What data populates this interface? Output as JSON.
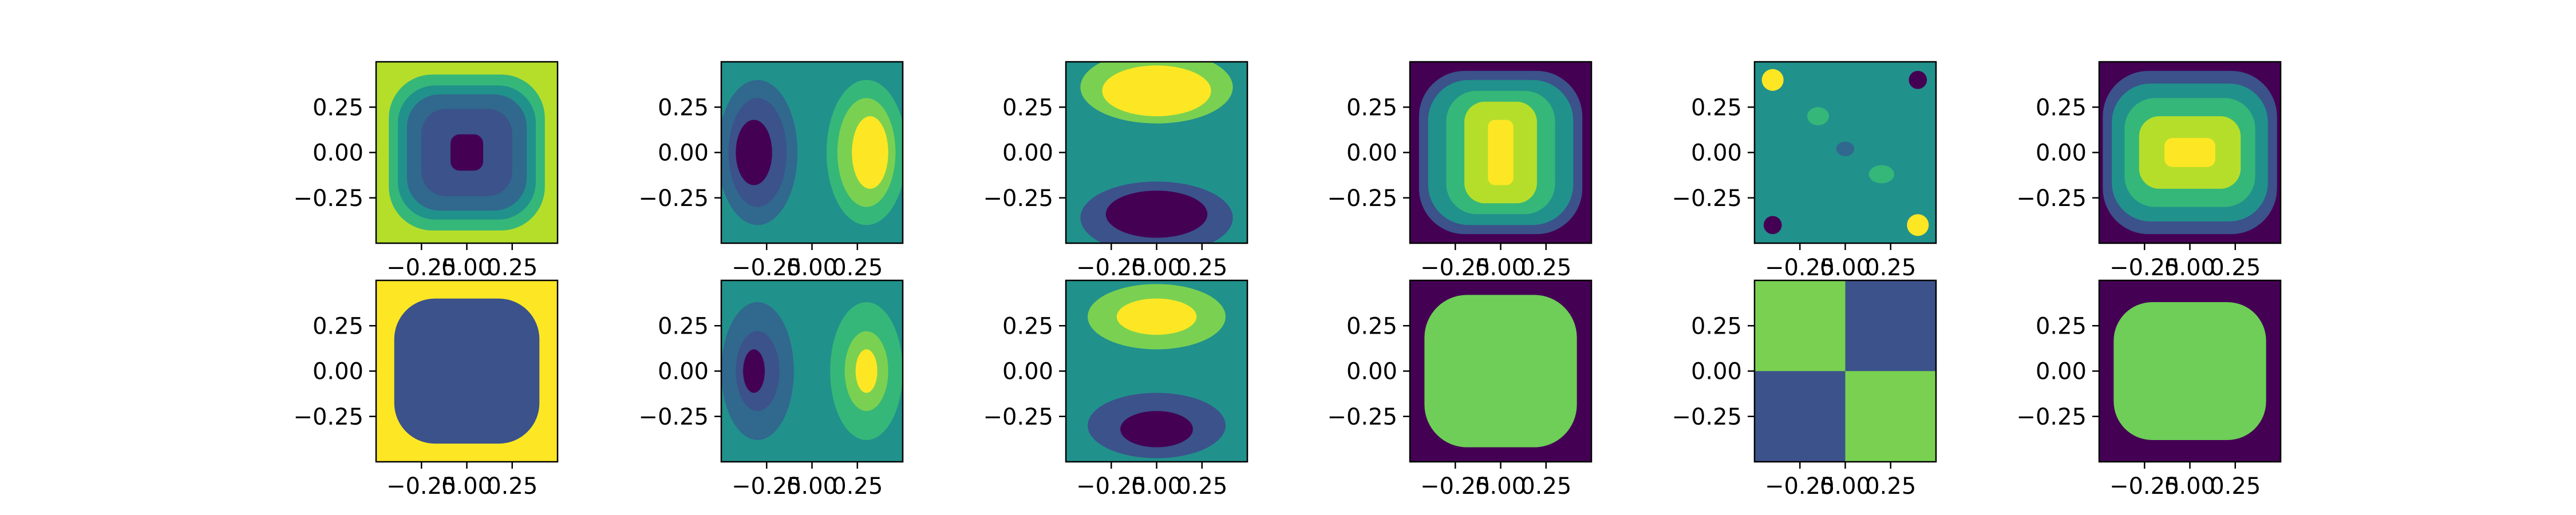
{
  "figure": {
    "rows": 2,
    "cols": 6,
    "colors": {
      "dark": "#440154",
      "indigo": "#3b528b",
      "blue": "#31688e",
      "teal": "#21918c",
      "green": "#35b779",
      "lime": "#7ad151",
      "yellow": "#fde725",
      "axis": "#000000",
      "background": "#ffffff"
    }
  },
  "chart_data": [
    {
      "type": "heatmap",
      "title": "",
      "xlabel": "",
      "ylabel": "",
      "colormap": "viridis",
      "xlim": [
        -0.5,
        0.5
      ],
      "ylim": [
        -0.5,
        0.5
      ],
      "x_ticks": [
        "−0.25",
        "0.00",
        "0.25"
      ],
      "y_ticks": [
        "0.25",
        "0.00",
        "−0.25"
      ],
      "pattern": "square contour rings: high (yellow) at edges, low (dark) at center",
      "levels": [
        {
          "half_w": 0.5,
          "half_h": 0.5,
          "color": "#b5de2b"
        },
        {
          "half_w": 0.43,
          "half_h": 0.43,
          "color": "#35b779"
        },
        {
          "half_w": 0.38,
          "half_h": 0.37,
          "color": "#21918c"
        },
        {
          "half_w": 0.33,
          "half_h": 0.32,
          "color": "#31688e"
        },
        {
          "half_w": 0.25,
          "half_h": 0.24,
          "color": "#3b528b"
        },
        {
          "half_w": 0.09,
          "half_h": 0.1,
          "color": "#440154"
        }
      ]
    },
    {
      "type": "heatmap",
      "title": "",
      "xlabel": "",
      "ylabel": "",
      "colormap": "viridis",
      "xlim": [
        -0.5,
        0.5
      ],
      "ylim": [
        -0.5,
        0.5
      ],
      "x_ticks": [
        "−0.25",
        "0.00",
        "0.25"
      ],
      "y_ticks": [
        "0.25",
        "0.00",
        "−0.25"
      ],
      "pattern": "low lobe on left, high lobe on right",
      "background": "#21918c",
      "blobs": [
        {
          "cx": -0.3,
          "cy": 0.0,
          "rx": 0.22,
          "ry": 0.4,
          "color": "#31688e"
        },
        {
          "cx": -0.3,
          "cy": 0.0,
          "rx": 0.16,
          "ry": 0.3,
          "color": "#3b528b"
        },
        {
          "cx": -0.32,
          "cy": 0.0,
          "rx": 0.1,
          "ry": 0.18,
          "color": "#440154"
        },
        {
          "cx": 0.3,
          "cy": 0.0,
          "rx": 0.22,
          "ry": 0.4,
          "color": "#35b779"
        },
        {
          "cx": 0.3,
          "cy": 0.0,
          "rx": 0.16,
          "ry": 0.3,
          "color": "#7ad151"
        },
        {
          "cx": 0.32,
          "cy": 0.0,
          "rx": 0.1,
          "ry": 0.2,
          "color": "#fde725"
        }
      ]
    },
    {
      "type": "heatmap",
      "title": "",
      "xlabel": "",
      "ylabel": "",
      "colormap": "viridis",
      "xlim": [
        -0.5,
        0.5
      ],
      "ylim": [
        -0.5,
        0.5
      ],
      "x_ticks": [
        "−0.25",
        "0.00",
        "0.25"
      ],
      "y_ticks": [
        "0.25",
        "0.00",
        "−0.25"
      ],
      "pattern": "high lobe at top, low lobe at bottom",
      "background": "#21918c",
      "blobs": [
        {
          "cx": 0.0,
          "cy": 0.36,
          "rx": 0.42,
          "ry": 0.2,
          "color": "#7ad151"
        },
        {
          "cx": 0.0,
          "cy": 0.34,
          "rx": 0.3,
          "ry": 0.14,
          "color": "#fde725"
        },
        {
          "cx": 0.0,
          "cy": -0.36,
          "rx": 0.42,
          "ry": 0.2,
          "color": "#3b528b"
        },
        {
          "cx": 0.0,
          "cy": -0.34,
          "rx": 0.28,
          "ry": 0.13,
          "color": "#440154"
        }
      ]
    },
    {
      "type": "heatmap",
      "title": "",
      "xlabel": "",
      "ylabel": "",
      "colormap": "viridis",
      "xlim": [
        -0.5,
        0.5
      ],
      "ylim": [
        -0.5,
        0.5
      ],
      "x_ticks": [
        "−0.25",
        "0.00",
        "0.25"
      ],
      "y_ticks": [
        "0.25",
        "0.00",
        "−0.25"
      ],
      "pattern": "square contour rings: low (dark) at edges, high (yellow) at center",
      "levels": [
        {
          "half_w": 0.5,
          "half_h": 0.5,
          "color": "#440154"
        },
        {
          "half_w": 0.45,
          "half_h": 0.45,
          "color": "#3b528b"
        },
        {
          "half_w": 0.4,
          "half_h": 0.4,
          "color": "#21918c"
        },
        {
          "half_w": 0.3,
          "half_h": 0.34,
          "color": "#35b779"
        },
        {
          "half_w": 0.2,
          "half_h": 0.28,
          "color": "#b5de2b"
        },
        {
          "half_w": 0.07,
          "half_h": 0.18,
          "color": "#fde725"
        }
      ]
    },
    {
      "type": "heatmap",
      "title": "",
      "xlabel": "",
      "ylabel": "",
      "colormap": "viridis",
      "xlim": [
        -0.5,
        0.5
      ],
      "ylim": [
        -0.5,
        0.5
      ],
      "x_ticks": [
        "−0.25",
        "0.00",
        "0.25"
      ],
      "y_ticks": [
        "0.25",
        "0.00",
        "−0.25"
      ],
      "pattern": "mostly flat mid value with small extrema at corners",
      "background": "#21918c",
      "blobs": [
        {
          "cx": -0.4,
          "cy": 0.4,
          "rx": 0.06,
          "ry": 0.06,
          "color": "#fde725"
        },
        {
          "cx": 0.4,
          "cy": -0.4,
          "rx": 0.06,
          "ry": 0.06,
          "color": "#fde725"
        },
        {
          "cx": 0.4,
          "cy": 0.4,
          "rx": 0.05,
          "ry": 0.05,
          "color": "#440154"
        },
        {
          "cx": -0.4,
          "cy": -0.4,
          "rx": 0.05,
          "ry": 0.05,
          "color": "#440154"
        },
        {
          "cx": -0.15,
          "cy": 0.2,
          "rx": 0.06,
          "ry": 0.05,
          "color": "#35b779"
        },
        {
          "cx": 0.2,
          "cy": -0.12,
          "rx": 0.07,
          "ry": 0.05,
          "color": "#35b779"
        },
        {
          "cx": 0.0,
          "cy": 0.02,
          "rx": 0.05,
          "ry": 0.04,
          "color": "#31688e"
        }
      ]
    },
    {
      "type": "heatmap",
      "title": "",
      "xlabel": "",
      "ylabel": "",
      "colormap": "viridis",
      "xlim": [
        -0.5,
        0.5
      ],
      "ylim": [
        -0.5,
        0.5
      ],
      "x_ticks": [
        "−0.25",
        "0.00",
        "0.25"
      ],
      "y_ticks": [
        "0.25",
        "0.00",
        "−0.25"
      ],
      "pattern": "rectangular rings: low at edges, high at center (wide)",
      "levels": [
        {
          "half_w": 0.5,
          "half_h": 0.5,
          "color": "#440154"
        },
        {
          "half_w": 0.48,
          "half_h": 0.45,
          "color": "#3b528b"
        },
        {
          "half_w": 0.43,
          "half_h": 0.38,
          "color": "#21918c"
        },
        {
          "half_w": 0.36,
          "half_h": 0.3,
          "color": "#35b779"
        },
        {
          "half_w": 0.28,
          "half_h": 0.2,
          "color": "#b5de2b"
        },
        {
          "half_w": 0.14,
          "half_h": 0.08,
          "color": "#fde725"
        }
      ]
    },
    {
      "type": "heatmap",
      "title": "",
      "xlabel": "",
      "ylabel": "",
      "colormap": "viridis",
      "xlim": [
        -0.5,
        0.5
      ],
      "ylim": [
        -0.5,
        0.5
      ],
      "x_ticks": [
        "−0.25",
        "0.00",
        "0.25"
      ],
      "y_ticks": [
        "0.25",
        "0.00",
        "−0.25"
      ],
      "pattern": "two levels: yellow border, indigo interior",
      "levels": [
        {
          "half_w": 0.5,
          "half_h": 0.5,
          "color": "#fde725"
        },
        {
          "half_w": 0.4,
          "half_h": 0.4,
          "color": "#3b528b"
        }
      ]
    },
    {
      "type": "heatmap",
      "title": "",
      "xlabel": "",
      "ylabel": "",
      "colormap": "viridis",
      "xlim": [
        -0.5,
        0.5
      ],
      "ylim": [
        -0.5,
        0.5
      ],
      "x_ticks": [
        "−0.25",
        "0.00",
        "0.25"
      ],
      "y_ticks": [
        "0.25",
        "0.00",
        "−0.25"
      ],
      "pattern": "noisy: low lobe on left, high lobe on right",
      "background": "#21918c",
      "blobs": [
        {
          "cx": -0.3,
          "cy": 0.0,
          "rx": 0.2,
          "ry": 0.38,
          "color": "#31688e"
        },
        {
          "cx": -0.3,
          "cy": 0.0,
          "rx": 0.12,
          "ry": 0.22,
          "color": "#3b528b"
        },
        {
          "cx": -0.32,
          "cy": 0.0,
          "rx": 0.06,
          "ry": 0.12,
          "color": "#440154"
        },
        {
          "cx": 0.3,
          "cy": 0.0,
          "rx": 0.2,
          "ry": 0.38,
          "color": "#35b779"
        },
        {
          "cx": 0.3,
          "cy": 0.0,
          "rx": 0.12,
          "ry": 0.22,
          "color": "#7ad151"
        },
        {
          "cx": 0.3,
          "cy": 0.0,
          "rx": 0.06,
          "ry": 0.12,
          "color": "#fde725"
        }
      ]
    },
    {
      "type": "heatmap",
      "title": "",
      "xlabel": "",
      "ylabel": "",
      "colormap": "viridis",
      "xlim": [
        -0.5,
        0.5
      ],
      "ylim": [
        -0.5,
        0.5
      ],
      "x_ticks": [
        "−0.25",
        "0.00",
        "0.25"
      ],
      "y_ticks": [
        "0.25",
        "0.00",
        "−0.25"
      ],
      "pattern": "noisy: high lobe at top, low lobe at bottom",
      "background": "#21918c",
      "blobs": [
        {
          "cx": 0.0,
          "cy": 0.3,
          "rx": 0.38,
          "ry": 0.18,
          "color": "#7ad151"
        },
        {
          "cx": 0.0,
          "cy": 0.3,
          "rx": 0.22,
          "ry": 0.1,
          "color": "#fde725"
        },
        {
          "cx": 0.0,
          "cy": -0.3,
          "rx": 0.38,
          "ry": 0.18,
          "color": "#3b528b"
        },
        {
          "cx": 0.0,
          "cy": -0.32,
          "rx": 0.2,
          "ry": 0.1,
          "color": "#440154"
        }
      ]
    },
    {
      "type": "heatmap",
      "title": "",
      "xlabel": "",
      "ylabel": "",
      "colormap": "viridis",
      "xlim": [
        -0.5,
        0.5
      ],
      "ylim": [
        -0.5,
        0.5
      ],
      "x_ticks": [
        "−0.25",
        "0.00",
        "0.25"
      ],
      "y_ticks": [
        "0.25",
        "0.00",
        "−0.25"
      ],
      "pattern": "two levels: dark border, green interior",
      "levels": [
        {
          "half_w": 0.5,
          "half_h": 0.5,
          "color": "#440154"
        },
        {
          "half_w": 0.42,
          "half_h": 0.42,
          "color": "#6ece58"
        }
      ]
    },
    {
      "type": "heatmap",
      "title": "",
      "xlabel": "",
      "ylabel": "",
      "colormap": "viridis",
      "xlim": [
        -0.5,
        0.5
      ],
      "ylim": [
        -0.5,
        0.5
      ],
      "x_ticks": [
        "−0.25",
        "0.00",
        "0.25"
      ],
      "y_ticks": [
        "0.25",
        "0.00",
        "−0.25"
      ],
      "pattern": "checkerboard quadrants: green top-left & bottom-right, indigo top-right & bottom-left",
      "quadrants": {
        "top_left": "#7ad151",
        "top_right": "#3b528b",
        "bottom_left": "#3b528b",
        "bottom_right": "#7ad151"
      }
    },
    {
      "type": "heatmap",
      "title": "",
      "xlabel": "",
      "ylabel": "",
      "colormap": "viridis",
      "xlim": [
        -0.5,
        0.5
      ],
      "ylim": [
        -0.5,
        0.5
      ],
      "x_ticks": [
        "−0.25",
        "0.00",
        "0.25"
      ],
      "y_ticks": [
        "0.25",
        "0.00",
        "−0.25"
      ],
      "pattern": "two levels: dark border, green interior (wide)",
      "levels": [
        {
          "half_w": 0.5,
          "half_h": 0.5,
          "color": "#440154"
        },
        {
          "half_w": 0.42,
          "half_h": 0.38,
          "color": "#6ece58"
        }
      ]
    }
  ]
}
